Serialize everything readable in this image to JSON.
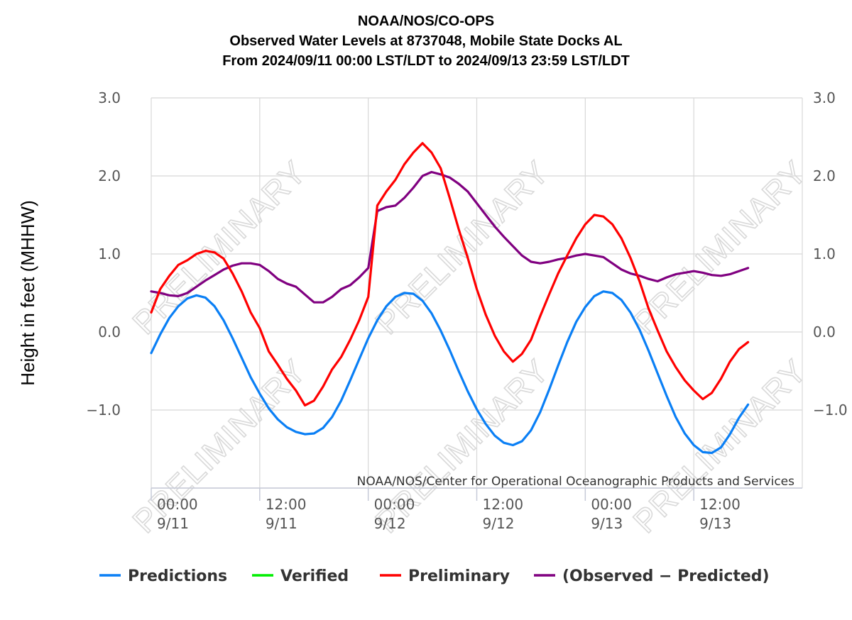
{
  "chart_data": {
    "type": "line",
    "title": [
      "NOAA/NOS/CO-OPS",
      "Observed Water Levels at 8737048, Mobile State Docks AL",
      "From 2024/09/11 00:00 LST/LDT to 2024/09/13 23:59 LST/LDT"
    ],
    "ylabel": "Height in feet (MHHW)",
    "ylim": [
      -2.0,
      3.0
    ],
    "yticks": [
      "3.0",
      "2.0",
      "1.0",
      "0.0",
      "−1.0"
    ],
    "xlim_hours": [
      0,
      72
    ],
    "xticks": [
      {
        "hour": 0,
        "time": "00:00",
        "date": "9/11"
      },
      {
        "hour": 12,
        "time": "12:00",
        "date": "9/11"
      },
      {
        "hour": 24,
        "time": "00:00",
        "date": "9/12"
      },
      {
        "hour": 36,
        "time": "12:00",
        "date": "9/12"
      },
      {
        "hour": 48,
        "time": "00:00",
        "date": "9/13"
      },
      {
        "hour": 60,
        "time": "12:00",
        "date": "9/13"
      }
    ],
    "grid": true,
    "legend_position": "bottom",
    "credit": "NOAA/NOS/Center for Operational Oceanographic Products and Services",
    "watermark": "PRELIMINARY",
    "series": [
      {
        "name": "Predictions",
        "color": "#0a7ff5",
        "points": [
          [
            0,
            -0.27
          ],
          [
            1,
            -0.03
          ],
          [
            2,
            0.18
          ],
          [
            3,
            0.33
          ],
          [
            4,
            0.43
          ],
          [
            5,
            0.47
          ],
          [
            6,
            0.44
          ],
          [
            7,
            0.33
          ],
          [
            8,
            0.15
          ],
          [
            9,
            -0.08
          ],
          [
            10,
            -0.33
          ],
          [
            11,
            -0.58
          ],
          [
            12,
            -0.79
          ],
          [
            13,
            -0.98
          ],
          [
            14,
            -1.12
          ],
          [
            15,
            -1.22
          ],
          [
            16,
            -1.28
          ],
          [
            17,
            -1.31
          ],
          [
            18,
            -1.3
          ],
          [
            19,
            -1.23
          ],
          [
            20,
            -1.09
          ],
          [
            21,
            -0.88
          ],
          [
            22,
            -0.62
          ],
          [
            23,
            -0.35
          ],
          [
            24,
            -0.08
          ],
          [
            25,
            0.15
          ],
          [
            26,
            0.33
          ],
          [
            27,
            0.45
          ],
          [
            28,
            0.5
          ],
          [
            29,
            0.49
          ],
          [
            30,
            0.4
          ],
          [
            31,
            0.24
          ],
          [
            32,
            0.02
          ],
          [
            33,
            -0.23
          ],
          [
            34,
            -0.5
          ],
          [
            35,
            -0.76
          ],
          [
            36,
            -0.99
          ],
          [
            37,
            -1.18
          ],
          [
            38,
            -1.33
          ],
          [
            39,
            -1.42
          ],
          [
            40,
            -1.45
          ],
          [
            41,
            -1.4
          ],
          [
            42,
            -1.26
          ],
          [
            43,
            -1.03
          ],
          [
            44,
            -0.74
          ],
          [
            45,
            -0.43
          ],
          [
            46,
            -0.13
          ],
          [
            47,
            0.13
          ],
          [
            48,
            0.32
          ],
          [
            49,
            0.46
          ],
          [
            50,
            0.52
          ],
          [
            51,
            0.5
          ],
          [
            52,
            0.41
          ],
          [
            53,
            0.25
          ],
          [
            54,
            0.03
          ],
          [
            55,
            -0.24
          ],
          [
            56,
            -0.53
          ],
          [
            57,
            -0.82
          ],
          [
            58,
            -1.09
          ],
          [
            59,
            -1.3
          ],
          [
            60,
            -1.45
          ],
          [
            61,
            -1.54
          ],
          [
            62,
            -1.55
          ],
          [
            63,
            -1.48
          ],
          [
            64,
            -1.31
          ],
          [
            65,
            -1.1
          ],
          [
            66,
            -0.93
          ]
        ]
      },
      {
        "name": "Verified",
        "color": "#00ee00",
        "points": []
      },
      {
        "name": "Preliminary",
        "color": "#ff0000",
        "points": [
          [
            0,
            0.25
          ],
          [
            1,
            0.55
          ],
          [
            2,
            0.72
          ],
          [
            3,
            0.86
          ],
          [
            4,
            0.92
          ],
          [
            5,
            1.0
          ],
          [
            6,
            1.04
          ],
          [
            7,
            1.02
          ],
          [
            8,
            0.94
          ],
          [
            9,
            0.75
          ],
          [
            10,
            0.52
          ],
          [
            11,
            0.25
          ],
          [
            12,
            0.05
          ],
          [
            13,
            -0.25
          ],
          [
            14,
            -0.42
          ],
          [
            15,
            -0.6
          ],
          [
            16,
            -0.75
          ],
          [
            17,
            -0.94
          ],
          [
            18,
            -0.88
          ],
          [
            19,
            -0.7
          ],
          [
            20,
            -0.48
          ],
          [
            21,
            -0.32
          ],
          [
            22,
            -0.1
          ],
          [
            23,
            0.15
          ],
          [
            24,
            0.45
          ],
          [
            25,
            1.62
          ],
          [
            26,
            1.8
          ],
          [
            27,
            1.95
          ],
          [
            28,
            2.15
          ],
          [
            29,
            2.3
          ],
          [
            30,
            2.42
          ],
          [
            31,
            2.3
          ],
          [
            32,
            2.1
          ],
          [
            33,
            1.72
          ],
          [
            34,
            1.32
          ],
          [
            35,
            0.95
          ],
          [
            36,
            0.55
          ],
          [
            37,
            0.22
          ],
          [
            38,
            -0.05
          ],
          [
            39,
            -0.25
          ],
          [
            40,
            -0.38
          ],
          [
            41,
            -0.28
          ],
          [
            42,
            -0.1
          ],
          [
            43,
            0.2
          ],
          [
            44,
            0.48
          ],
          [
            45,
            0.75
          ],
          [
            46,
            0.98
          ],
          [
            47,
            1.2
          ],
          [
            48,
            1.38
          ],
          [
            49,
            1.5
          ],
          [
            50,
            1.48
          ],
          [
            51,
            1.38
          ],
          [
            52,
            1.2
          ],
          [
            53,
            0.95
          ],
          [
            54,
            0.65
          ],
          [
            55,
            0.3
          ],
          [
            56,
            0.02
          ],
          [
            57,
            -0.25
          ],
          [
            58,
            -0.45
          ],
          [
            59,
            -0.62
          ],
          [
            60,
            -0.75
          ],
          [
            61,
            -0.86
          ],
          [
            62,
            -0.78
          ],
          [
            63,
            -0.6
          ],
          [
            64,
            -0.38
          ],
          [
            65,
            -0.22
          ],
          [
            66,
            -0.13
          ]
        ]
      },
      {
        "name": "(Observed − Predicted)",
        "color": "#800080",
        "points": [
          [
            0,
            0.52
          ],
          [
            1,
            0.5
          ],
          [
            2,
            0.47
          ],
          [
            3,
            0.46
          ],
          [
            4,
            0.5
          ],
          [
            5,
            0.58
          ],
          [
            6,
            0.66
          ],
          [
            7,
            0.73
          ],
          [
            8,
            0.8
          ],
          [
            9,
            0.85
          ],
          [
            10,
            0.88
          ],
          [
            11,
            0.88
          ],
          [
            12,
            0.86
          ],
          [
            13,
            0.78
          ],
          [
            14,
            0.68
          ],
          [
            15,
            0.62
          ],
          [
            16,
            0.58
          ],
          [
            17,
            0.48
          ],
          [
            18,
            0.38
          ],
          [
            19,
            0.38
          ],
          [
            20,
            0.45
          ],
          [
            21,
            0.55
          ],
          [
            22,
            0.6
          ],
          [
            23,
            0.7
          ],
          [
            24,
            0.82
          ],
          [
            25,
            1.55
          ],
          [
            26,
            1.6
          ],
          [
            27,
            1.62
          ],
          [
            28,
            1.72
          ],
          [
            29,
            1.85
          ],
          [
            30,
            2.0
          ],
          [
            31,
            2.05
          ],
          [
            32,
            2.02
          ],
          [
            33,
            1.98
          ],
          [
            34,
            1.9
          ],
          [
            35,
            1.8
          ],
          [
            36,
            1.65
          ],
          [
            37,
            1.5
          ],
          [
            38,
            1.35
          ],
          [
            39,
            1.22
          ],
          [
            40,
            1.1
          ],
          [
            41,
            0.98
          ],
          [
            42,
            0.9
          ],
          [
            43,
            0.88
          ],
          [
            44,
            0.9
          ],
          [
            45,
            0.93
          ],
          [
            46,
            0.95
          ],
          [
            47,
            0.98
          ],
          [
            48,
            1.0
          ],
          [
            49,
            0.98
          ],
          [
            50,
            0.96
          ],
          [
            51,
            0.88
          ],
          [
            52,
            0.8
          ],
          [
            53,
            0.75
          ],
          [
            54,
            0.72
          ],
          [
            55,
            0.68
          ],
          [
            56,
            0.65
          ],
          [
            57,
            0.7
          ],
          [
            58,
            0.74
          ],
          [
            59,
            0.76
          ],
          [
            60,
            0.78
          ],
          [
            61,
            0.76
          ],
          [
            62,
            0.73
          ],
          [
            63,
            0.72
          ],
          [
            64,
            0.74
          ],
          [
            65,
            0.78
          ],
          [
            66,
            0.82
          ]
        ]
      }
    ],
    "legend": [
      {
        "label": "Predictions",
        "color": "#0a7ff5"
      },
      {
        "label": "Verified",
        "color": "#00ee00"
      },
      {
        "label": "Preliminary",
        "color": "#ff0000"
      },
      {
        "label": "(Observed − Predicted)",
        "color": "#800080"
      }
    ]
  }
}
